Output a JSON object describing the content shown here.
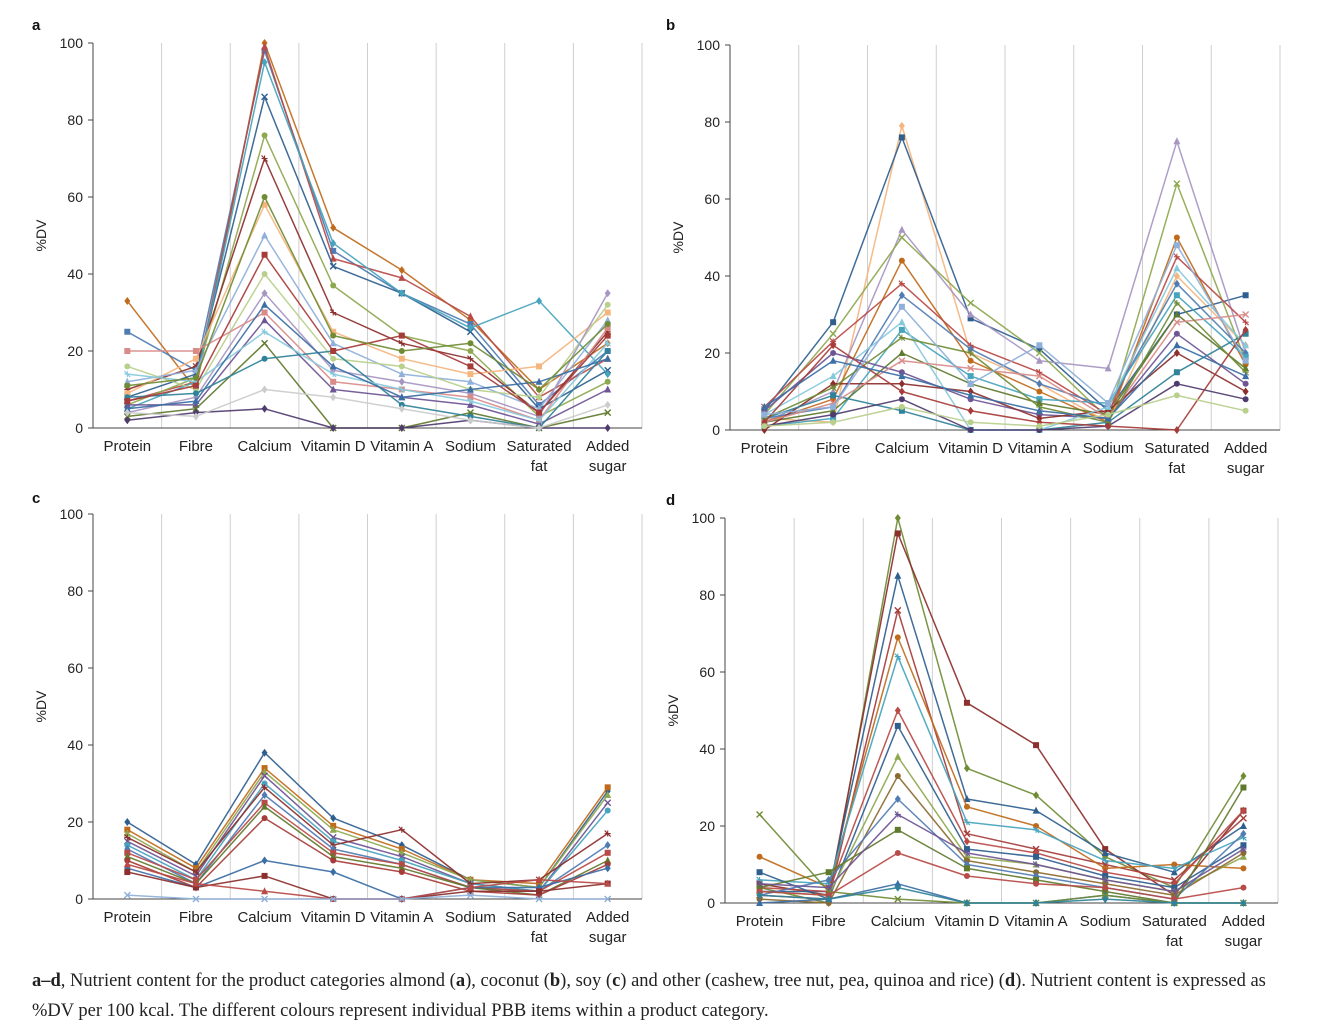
{
  "caption": {
    "parts": [
      {
        "t": "a–d",
        "b": true
      },
      {
        "t": ", Nutrient content for the product categories almond (",
        "b": false
      },
      {
        "t": "a",
        "b": true
      },
      {
        "t": "), coconut (",
        "b": false
      },
      {
        "t": "b",
        "b": true
      },
      {
        "t": "), soy (",
        "b": false
      },
      {
        "t": "c",
        "b": true
      },
      {
        "t": ") and other (cashew, tree nut, pea, quinoa and rice) (",
        "b": false
      },
      {
        "t": "d",
        "b": true
      },
      {
        "t": "). Nutrient content is expressed as %DV per 100 kcal. The different colours represent individual PBB items within a product category.",
        "b": false
      }
    ]
  },
  "palette": [
    "#4f7cb3",
    "#b84a47",
    "#8ea84f",
    "#6e5594",
    "#46a4bd",
    "#e08f3d",
    "#2f5f8f",
    "#8c2f2d",
    "#5f7a2c",
    "#4f3b6e",
    "#2f8299",
    "#c06b1c",
    "#8fb0d9",
    "#d98b89",
    "#b9cf8c",
    "#a796c2",
    "#86c9dc",
    "#f4b57e",
    "#3b6ea5",
    "#a63c3a",
    "#6f8c35"
  ],
  "chart_data": [
    {
      "panel": "a",
      "type": "line",
      "ylabel": "%DV",
      "ylim": [
        0,
        100
      ],
      "yticks": [
        0,
        20,
        40,
        60,
        80,
        100
      ],
      "categories": [
        "Protein",
        "Fibre",
        "Calcium",
        "Vitamin D",
        "Vitamin A",
        "Sodium",
        "Saturated fat",
        "Added sugar"
      ],
      "series": [
        {
          "values": [
            33,
            10,
            100,
            52,
            41,
            28,
            10,
            22
          ],
          "color": "#c06b1c"
        },
        {
          "values": [
            25,
            15,
            98,
            46,
            35,
            27,
            6,
            20
          ],
          "color": "#4f7cb3"
        },
        {
          "values": [
            7,
            12,
            99,
            44,
            39,
            29,
            8,
            18
          ],
          "color": "#b84a47"
        },
        {
          "values": [
            8,
            14,
            86,
            42,
            35,
            25,
            5,
            15
          ],
          "color": "#2f5f8f"
        },
        {
          "values": [
            6,
            13,
            76,
            37,
            24,
            20,
            3,
            12
          ],
          "color": "#8ea84f"
        },
        {
          "values": [
            10,
            16,
            70,
            30,
            22,
            18,
            4,
            25
          ],
          "color": "#8c2f2d"
        },
        {
          "values": [
            5,
            12,
            95,
            48,
            35,
            26,
            33,
            14
          ],
          "color": "#46a4bd"
        },
        {
          "values": [
            9,
            18,
            58,
            25,
            18,
            14,
            16,
            30
          ],
          "color": "#f4b57e"
        },
        {
          "values": [
            12,
            15,
            50,
            22,
            14,
            12,
            5,
            28
          ],
          "color": "#8fb0d9"
        },
        {
          "values": [
            16,
            10,
            40,
            18,
            16,
            10,
            8,
            32
          ],
          "color": "#b9cf8c"
        },
        {
          "values": [
            4,
            8,
            35,
            15,
            12,
            9,
            3,
            35
          ],
          "color": "#a796c2"
        },
        {
          "values": [
            20,
            20,
            30,
            12,
            10,
            8,
            2,
            26
          ],
          "color": "#d98b89"
        },
        {
          "values": [
            6,
            6,
            28,
            10,
            8,
            6,
            1,
            10
          ],
          "color": "#6e5594"
        },
        {
          "values": [
            3,
            5,
            22,
            0,
            0,
            4,
            0,
            4
          ],
          "color": "#5f7a2c"
        },
        {
          "values": [
            8,
            9,
            18,
            20,
            6,
            3,
            0,
            20
          ],
          "color": "#2f8299"
        },
        {
          "values": [
            14,
            12,
            25,
            14,
            10,
            7,
            2,
            22
          ],
          "color": "#86c9dc"
        },
        {
          "values": [
            2,
            4,
            5,
            0,
            0,
            2,
            0,
            0
          ],
          "color": "#4f3b6e"
        },
        {
          "values": [
            7,
            11,
            45,
            20,
            24,
            16,
            4,
            24
          ],
          "color": "#a63c3a"
        },
        {
          "values": [
            5,
            7,
            32,
            16,
            8,
            10,
            12,
            18
          ],
          "color": "#3b6ea5"
        },
        {
          "values": [
            11,
            13,
            60,
            24,
            20,
            22,
            10,
            27
          ],
          "color": "#6f8c35"
        },
        {
          "values": [
            4,
            3,
            10,
            8,
            5,
            2,
            0,
            6
          ],
          "color": "#cccccc"
        }
      ]
    },
    {
      "panel": "b",
      "type": "line",
      "ylabel": "%DV",
      "ylim": [
        0,
        100
      ],
      "yticks": [
        0,
        20,
        40,
        60,
        80,
        100
      ],
      "categories": [
        "Protein",
        "Fibre",
        "Calcium",
        "Vitamin D",
        "Vitamin A",
        "Sodium",
        "Saturated fat",
        "Added sugar"
      ],
      "series": [
        {
          "values": [
            3,
            2,
            79,
            20,
            12,
            2,
            40,
            22
          ],
          "color": "#f4b57e"
        },
        {
          "values": [
            5,
            28,
            76,
            29,
            21,
            5,
            30,
            35
          ],
          "color": "#2f5f8f"
        },
        {
          "values": [
            2,
            10,
            52,
            30,
            18,
            16,
            75,
            20
          ],
          "color": "#a796c2"
        },
        {
          "values": [
            4,
            25,
            50,
            33,
            20,
            3,
            64,
            18
          ],
          "color": "#8ea84f"
        },
        {
          "values": [
            2,
            8,
            44,
            18,
            10,
            2,
            50,
            17
          ],
          "color": "#c06b1c"
        },
        {
          "values": [
            6,
            23,
            38,
            22,
            15,
            4,
            45,
            28
          ],
          "color": "#b84a47"
        },
        {
          "values": [
            3,
            6,
            35,
            21,
            12,
            6,
            38,
            20
          ],
          "color": "#4f7cb3"
        },
        {
          "values": [
            1,
            3,
            26,
            14,
            8,
            7,
            35,
            19
          ],
          "color": "#46a4bd"
        },
        {
          "values": [
            2,
            5,
            20,
            12,
            7,
            4,
            30,
            16
          ],
          "color": "#5f7a2c"
        },
        {
          "values": [
            5,
            20,
            15,
            8,
            4,
            3,
            25,
            12
          ],
          "color": "#6e5594"
        },
        {
          "values": [
            0,
            12,
            12,
            10,
            3,
            5,
            20,
            10
          ],
          "color": "#8c2f2d"
        },
        {
          "values": [
            3,
            9,
            5,
            0,
            0,
            2,
            15,
            25
          ],
          "color": "#2f8299"
        },
        {
          "values": [
            4,
            14,
            28,
            0,
            0,
            6,
            42,
            22
          ],
          "color": "#86c9dc"
        },
        {
          "values": [
            2,
            7,
            18,
            16,
            14,
            3,
            28,
            30
          ],
          "color": "#d98b89"
        },
        {
          "values": [
            1,
            4,
            8,
            0,
            0,
            1,
            12,
            8
          ],
          "color": "#4f3b6e"
        },
        {
          "values": [
            3,
            11,
            24,
            20,
            6,
            2,
            33,
            15
          ],
          "color": "#6f8c35"
        },
        {
          "values": [
            2,
            22,
            10,
            5,
            2,
            1,
            0,
            26
          ],
          "color": "#a63c3a"
        },
        {
          "values": [
            4,
            6,
            32,
            12,
            22,
            7,
            48,
            18
          ],
          "color": "#8fb0d9"
        },
        {
          "values": [
            6,
            18,
            14,
            9,
            5,
            3,
            22,
            14
          ],
          "color": "#3b6ea5"
        },
        {
          "values": [
            1,
            2,
            6,
            2,
            1,
            4,
            9,
            5
          ],
          "color": "#b9cf8c"
        }
      ]
    },
    {
      "panel": "c",
      "type": "line",
      "ylabel": "%DV",
      "ylim": [
        0,
        100
      ],
      "yticks": [
        0,
        20,
        40,
        60,
        80,
        100
      ],
      "categories": [
        "Protein",
        "Fibre",
        "Calcium",
        "Vitamin D",
        "Vitamin A",
        "Sodium",
        "Saturated fat",
        "Added sugar"
      ],
      "series": [
        {
          "values": [
            20,
            9,
            38,
            21,
            14,
            5,
            3,
            28
          ],
          "color": "#2f5f8f"
        },
        {
          "values": [
            18,
            8,
            34,
            19,
            13,
            5,
            4,
            29
          ],
          "color": "#c06b1c"
        },
        {
          "values": [
            17,
            7,
            33,
            18,
            12,
            5,
            3,
            27
          ],
          "color": "#8ea84f"
        },
        {
          "values": [
            15,
            6,
            32,
            16,
            11,
            4,
            2,
            25
          ],
          "color": "#6e5594"
        },
        {
          "values": [
            14,
            5,
            30,
            15,
            10,
            4,
            2,
            23
          ],
          "color": "#46a4bd"
        },
        {
          "values": [
            16,
            7,
            29,
            14,
            18,
            4,
            5,
            17
          ],
          "color": "#8c2f2d"
        },
        {
          "values": [
            13,
            4,
            27,
            13,
            9,
            3,
            2,
            14
          ],
          "color": "#4f7cb3"
        },
        {
          "values": [
            12,
            5,
            25,
            12,
            9,
            3,
            2,
            12
          ],
          "color": "#b84a47"
        },
        {
          "values": [
            11,
            4,
            24,
            11,
            8,
            3,
            1,
            10
          ],
          "color": "#5f7a2c"
        },
        {
          "values": [
            10,
            3,
            21,
            10,
            7,
            2,
            1,
            9
          ],
          "color": "#a63c3a"
        },
        {
          "values": [
            8,
            3,
            10,
            7,
            0,
            3,
            3,
            8
          ],
          "color": "#3b6ea5"
        },
        {
          "values": [
            7,
            3,
            6,
            0,
            0,
            2,
            2,
            4
          ],
          "color": "#8c2f2d"
        },
        {
          "values": [
            9,
            4,
            2,
            0,
            0,
            3,
            5,
            4
          ],
          "color": "#b84a47"
        },
        {
          "values": [
            1,
            0,
            0,
            0,
            0,
            1,
            0,
            0
          ],
          "color": "#8fb0d9"
        }
      ]
    },
    {
      "panel": "d",
      "type": "line",
      "ylabel": "%DV",
      "ylim": [
        0,
        100
      ],
      "yticks": [
        0,
        20,
        40,
        60,
        80,
        100
      ],
      "categories": [
        "Protein",
        "Fibre",
        "Calcium",
        "Vitamin D",
        "Vitamin A",
        "Sodium",
        "Saturated fat",
        "Added sugar"
      ],
      "series": [
        {
          "values": [
            4,
            0,
            100,
            35,
            28,
            12,
            4,
            33
          ],
          "color": "#6f8c35"
        },
        {
          "values": [
            5,
            2,
            96,
            52,
            41,
            14,
            2,
            24
          ],
          "color": "#8c2f2d"
        },
        {
          "values": [
            3,
            3,
            85,
            27,
            24,
            13,
            8,
            20
          ],
          "color": "#2f5f8f"
        },
        {
          "values": [
            2,
            1,
            76,
            18,
            14,
            10,
            6,
            22
          ],
          "color": "#a63c3a"
        },
        {
          "values": [
            12,
            4,
            69,
            25,
            20,
            9,
            10,
            9
          ],
          "color": "#c06b1c"
        },
        {
          "values": [
            6,
            5,
            64,
            21,
            19,
            11,
            9,
            17
          ],
          "color": "#46a4bd"
        },
        {
          "values": [
            4,
            3,
            50,
            16,
            13,
            8,
            5,
            24
          ],
          "color": "#b84a47"
        },
        {
          "values": [
            8,
            1,
            46,
            14,
            12,
            7,
            4,
            15
          ],
          "color": "#2f5f8f"
        },
        {
          "values": [
            3,
            2,
            38,
            12,
            10,
            6,
            3,
            12
          ],
          "color": "#8ea84f"
        },
        {
          "values": [
            1,
            0,
            33,
            11,
            8,
            5,
            2,
            13
          ],
          "color": "#8c6a2f"
        },
        {
          "values": [
            2,
            6,
            27,
            10,
            7,
            4,
            1,
            18
          ],
          "color": "#4f7cb3"
        },
        {
          "values": [
            4,
            8,
            19,
            9,
            6,
            3,
            0,
            30
          ],
          "color": "#5f7a2c"
        },
        {
          "values": [
            0,
            1,
            5,
            0,
            0,
            2,
            0,
            0
          ],
          "color": "#3b6ea5"
        },
        {
          "values": [
            23,
            3,
            1,
            0,
            0,
            2,
            0,
            0
          ],
          "color": "#6f8c35"
        },
        {
          "values": [
            3,
            2,
            13,
            7,
            5,
            4,
            1,
            4
          ],
          "color": "#b84a47"
        },
        {
          "values": [
            5,
            4,
            23,
            13,
            10,
            6,
            3,
            14
          ],
          "color": "#6e5594"
        },
        {
          "values": [
            2,
            1,
            4,
            0,
            0,
            1,
            0,
            0
          ],
          "color": "#2f8299"
        }
      ]
    }
  ]
}
